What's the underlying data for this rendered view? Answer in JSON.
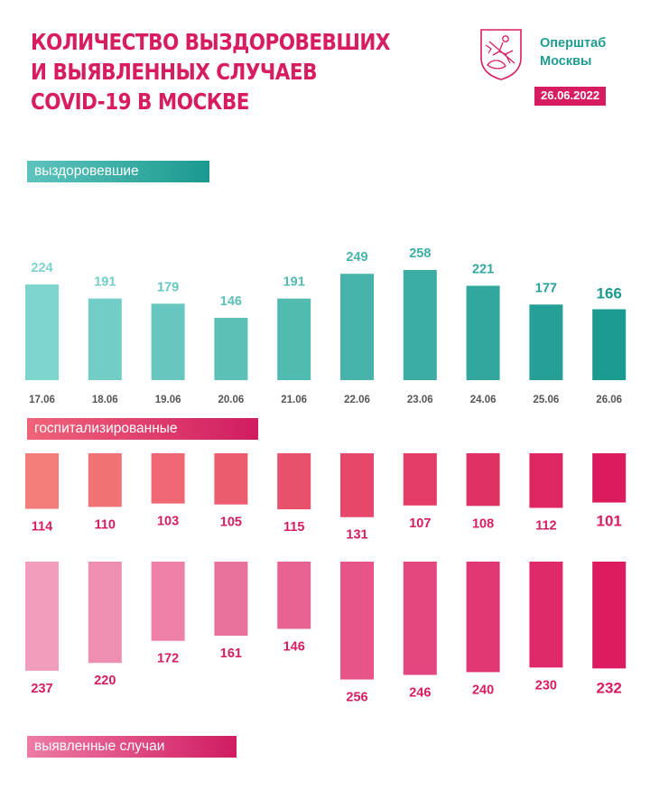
{
  "header": {
    "title_lines": [
      "КОЛИЧЕСТВО ВЫЗДОРОВЕВШИХ",
      "И ВЫЯВЛЕННЫХ СЛУЧАЕВ",
      "COVID-19 В МОСКВЕ"
    ],
    "org_lines": [
      "Оперштаб",
      "Москвы"
    ],
    "date": "26.06.2022",
    "emblem_icon": "moscow-coat-of-arms-icon"
  },
  "labels": {
    "recovered": "выздоровевшие",
    "hospitalized": "госпитализированные",
    "cases": "выявленные случаи"
  },
  "chart_data": [
    {
      "type": "bar",
      "name": "выздоровевшие",
      "categories": [
        "17.06",
        "18.06",
        "19.06",
        "20.06",
        "21.06",
        "22.06",
        "23.06",
        "24.06",
        "25.06",
        "26.06"
      ],
      "values": [
        224,
        191,
        179,
        146,
        191,
        249,
        258,
        221,
        177,
        166
      ],
      "colors": [
        "#7dd3cd",
        "#1b9a8f"
      ],
      "grid": false
    },
    {
      "type": "bar",
      "name": "госпитализированные",
      "categories": [
        "17.06",
        "18.06",
        "19.06",
        "20.06",
        "21.06",
        "22.06",
        "23.06",
        "24.06",
        "25.06",
        "26.06"
      ],
      "values": [
        114,
        110,
        103,
        105,
        115,
        131,
        107,
        108,
        112,
        101
      ],
      "colors": [
        "#f37d78",
        "#db1b5e"
      ],
      "orientation": "downward",
      "grid": false
    },
    {
      "type": "bar",
      "name": "выявленные случаи",
      "categories": [
        "17.06",
        "18.06",
        "19.06",
        "20.06",
        "21.06",
        "22.06",
        "23.06",
        "24.06",
        "25.06",
        "26.06"
      ],
      "values": [
        237,
        220,
        172,
        161,
        146,
        256,
        246,
        240,
        230,
        232
      ],
      "colors": [
        "#f19cbd",
        "#dd1b60"
      ],
      "orientation": "downward",
      "grid": false
    }
  ]
}
